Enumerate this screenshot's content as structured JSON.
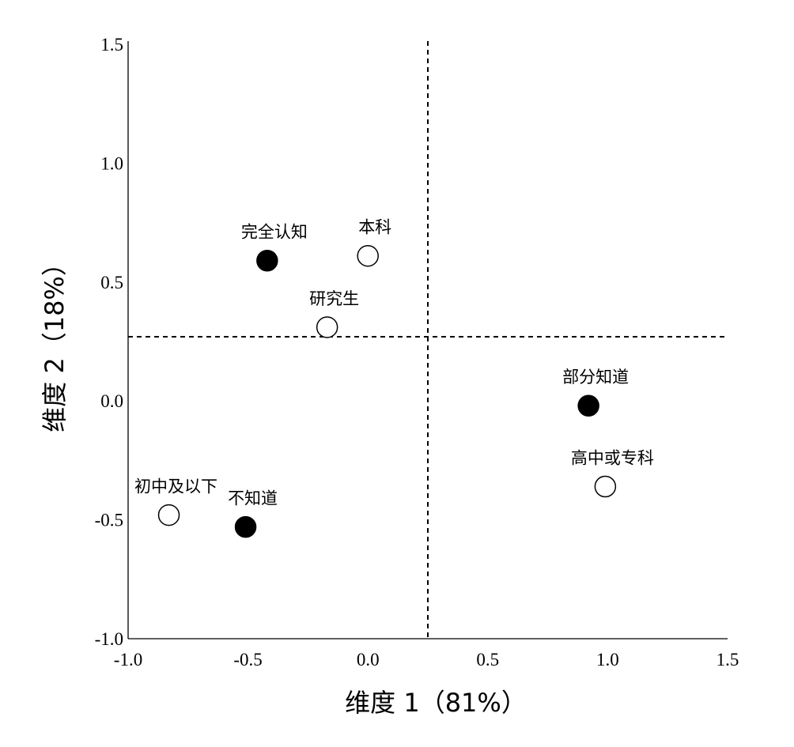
{
  "chart_data": {
    "type": "scatter",
    "xlabel": "维度 1（81%）",
    "ylabel": "维度 2（18%）",
    "xlim": [
      -1.0,
      1.5
    ],
    "ylim": [
      -1.0,
      1.5
    ],
    "x_ticks": [
      "-1.0",
      "-0.5",
      "0.0",
      "0.5",
      "1.0",
      "1.5"
    ],
    "y_ticks": [
      "-1.0",
      "-0.5",
      "0.0",
      "0.5",
      "1.0",
      "1.5"
    ],
    "reference_lines": {
      "x": 0.25,
      "y": 0.27
    },
    "grid": false,
    "series": [
      {
        "marker": "filled-circle",
        "color": "#000000",
        "points": [
          {
            "label": "完全认知",
            "x": -0.42,
            "y": 0.59
          },
          {
            "label": "部分知道",
            "x": 0.92,
            "y": -0.02
          },
          {
            "label": "不知道",
            "x": -0.51,
            "y": -0.53
          }
        ]
      },
      {
        "marker": "open-circle",
        "color": "#000000",
        "points": [
          {
            "label": "本科",
            "x": 0.0,
            "y": 0.61
          },
          {
            "label": "研究生",
            "x": -0.17,
            "y": 0.31
          },
          {
            "label": "高中或专科",
            "x": 0.99,
            "y": -0.36
          },
          {
            "label": "初中及以下",
            "x": -0.83,
            "y": -0.48
          }
        ]
      }
    ]
  }
}
